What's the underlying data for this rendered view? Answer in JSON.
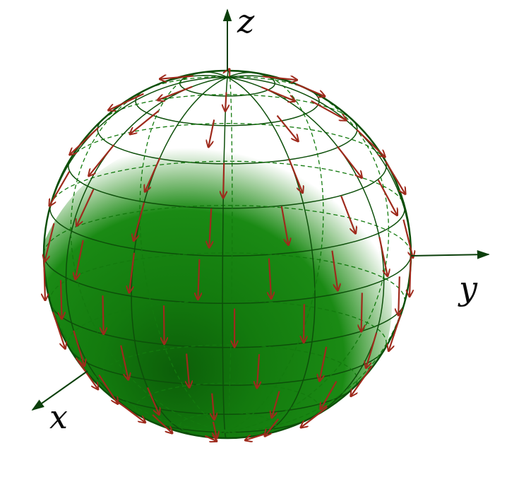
{
  "axes": {
    "z_label": "z",
    "y_label": "y",
    "x_label": "x"
  },
  "colors": {
    "sphere_fill": "#137a0e",
    "sphere_dark": "#0b5a08",
    "grid_line": "#0d4f0a",
    "arrow": "#9e2a1c",
    "axis": "#0b3f0b"
  },
  "sphere": {
    "latitude_lines": 12,
    "longitude_lines": 12
  }
}
